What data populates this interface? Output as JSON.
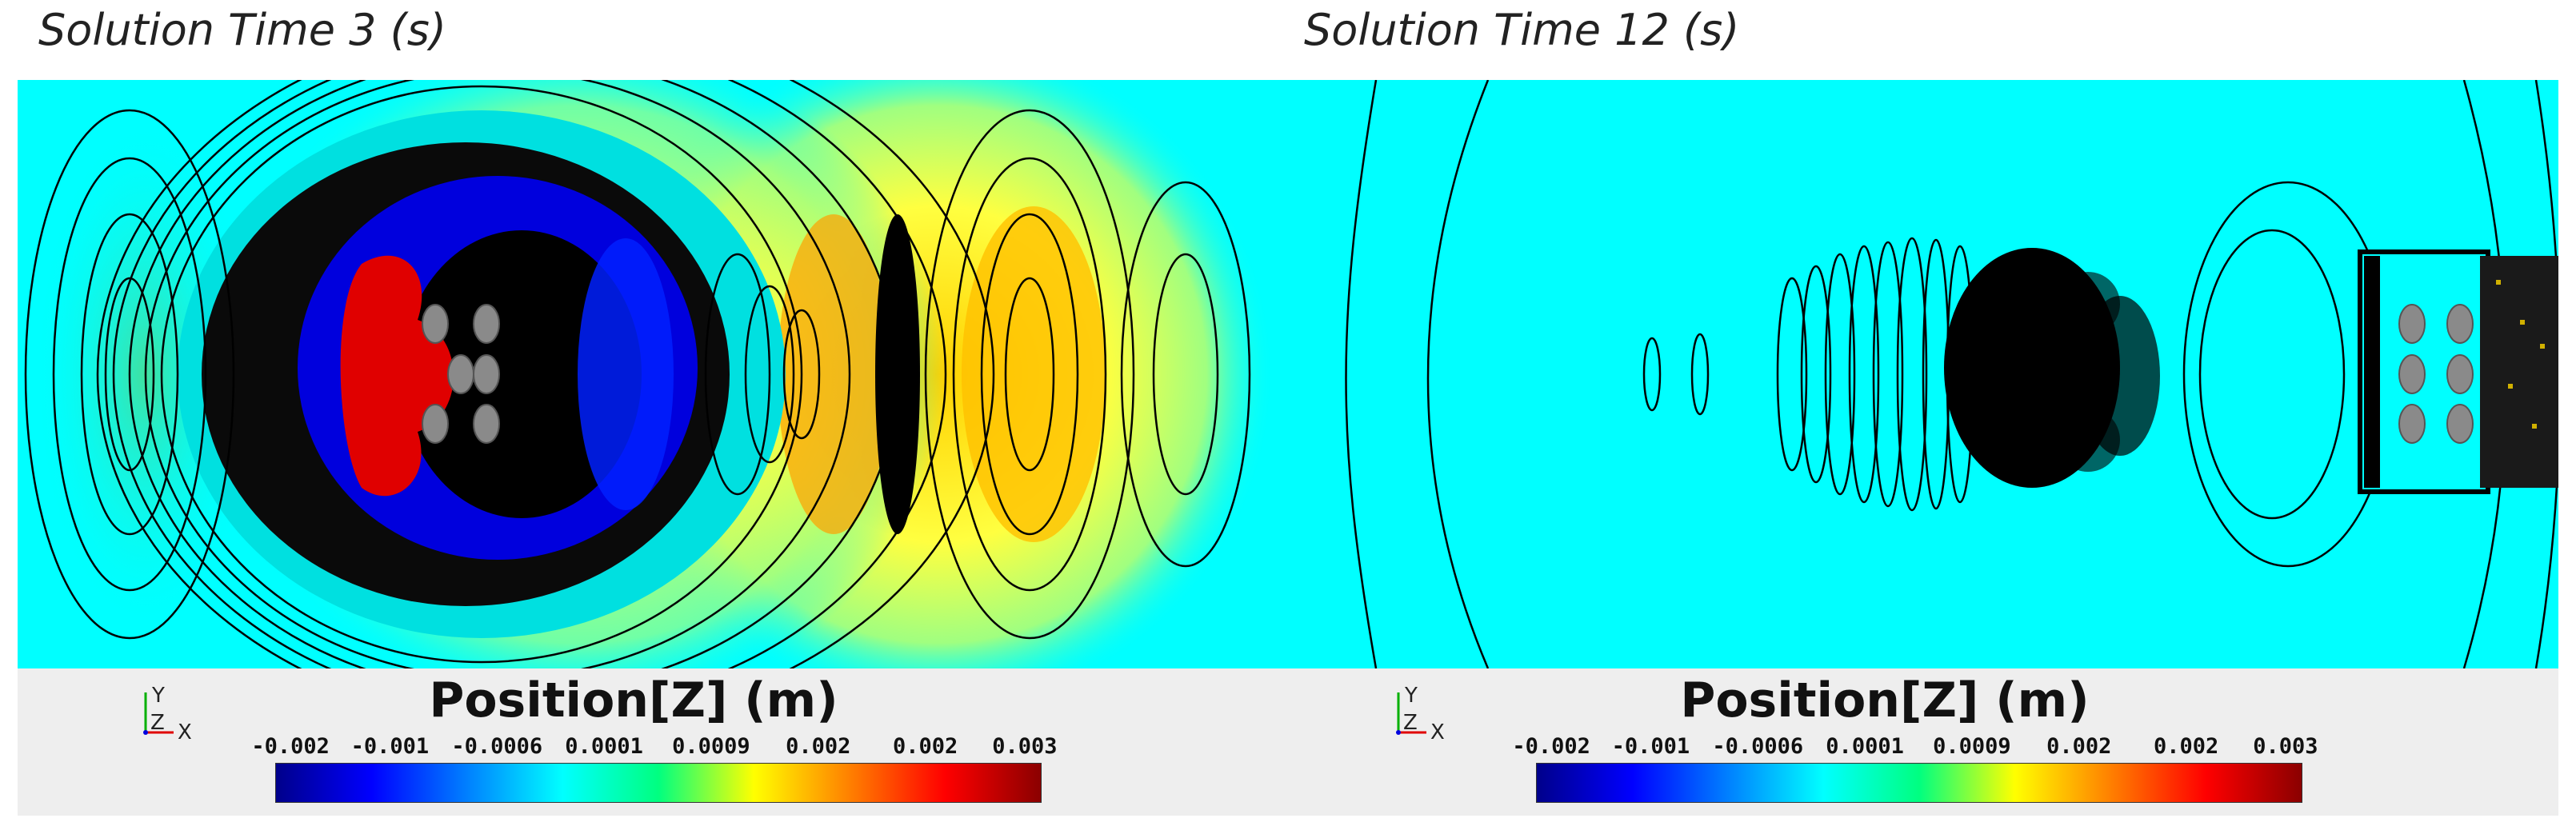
{
  "panels": [
    {
      "title": "Solution Time 3 (s)",
      "legend": {
        "title": "Position[Z] (m)",
        "ticks": [
          "-0.002",
          "-0.001",
          "-0.0006",
          "0.0001",
          "0.0009",
          "0.002",
          "0.002",
          "0.003"
        ]
      },
      "triad": {
        "y": "Y",
        "z": "Z",
        "x": "X"
      }
    },
    {
      "title": "Solution Time 12 (s)",
      "legend": {
        "title": "Position[Z] (m)",
        "ticks": [
          "-0.002",
          "-0.001",
          "-0.0006",
          "0.0001",
          "0.0009",
          "0.002",
          "0.002",
          "0.003"
        ]
      },
      "triad": {
        "y": "Y",
        "z": "Z",
        "x": "X"
      }
    }
  ],
  "colormap": [
    "#00008b",
    "#0000ff",
    "#0080ff",
    "#00ffff",
    "#00ff80",
    "#ffff00",
    "#ff8000",
    "#ff0000",
    "#8b0000"
  ]
}
